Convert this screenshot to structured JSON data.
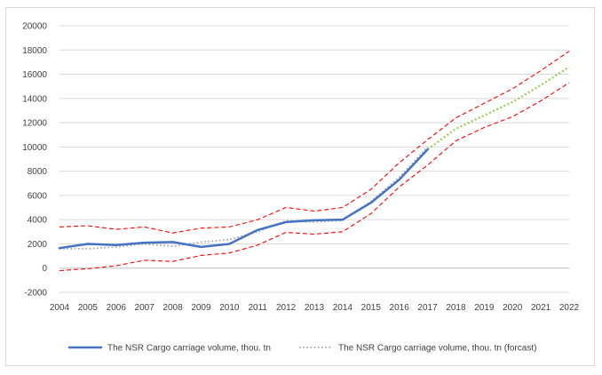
{
  "chart_data": {
    "type": "line",
    "x": [
      2004,
      2005,
      2006,
      2007,
      2008,
      2009,
      2010,
      2011,
      2012,
      2013,
      2014,
      2015,
      2016,
      2017,
      2018,
      2019,
      2020,
      2021,
      2022
    ],
    "x_tick_labels": [
      "2004",
      "2005",
      "2006",
      "2007",
      "2008",
      "2009",
      "2010",
      "2011",
      "2012",
      "2013",
      "2014",
      "2015",
      "2016",
      "2017",
      "2018",
      "2019",
      "2020",
      "2021",
      "2022"
    ],
    "y_tick_labels": [
      "-2000",
      "0",
      "2000",
      "4000",
      "6000",
      "8000",
      "10000",
      "12000",
      "14000",
      "16000",
      "18000",
      "20000"
    ],
    "y_ticks": [
      -2000,
      0,
      2000,
      4000,
      6000,
      8000,
      10000,
      12000,
      14000,
      16000,
      18000,
      20000
    ],
    "ylim": [
      -2000,
      20000
    ],
    "xlim": [
      2004,
      2022
    ],
    "grid": "horizontal",
    "legend_position": "bottom",
    "series": [
      {
        "name": "The NSR Cargo carriage volume, thou. tn",
        "color": "#4472c4",
        "style": "solid",
        "in_legend": true,
        "x": [
          2004,
          2005,
          2006,
          2007,
          2008,
          2009,
          2010,
          2011,
          2012,
          2013,
          2014,
          2015,
          2016,
          2017
        ],
        "values": [
          1650,
          2000,
          1900,
          2100,
          2150,
          1750,
          2000,
          3150,
          3800,
          3950,
          4000,
          5400,
          7300,
          9800
        ]
      },
      {
        "name": "The NSR Cargo carriage volume, thou. tn (forcast)",
        "color": "#a5a5a5",
        "style": "dotted",
        "in_legend": true,
        "x": [
          2004,
          2005,
          2006,
          2007,
          2008,
          2009,
          2010,
          2011,
          2012,
          2013,
          2014,
          2015,
          2016,
          2017
        ],
        "values": [
          1600,
          1600,
          1750,
          2000,
          1800,
          2150,
          2350,
          3000,
          3900,
          3800,
          3950,
          5500,
          7500,
          10000
        ]
      },
      {
        "name": "",
        "color": "#92d050",
        "style": "dotted",
        "in_legend": false,
        "x": [
          2017,
          2018,
          2019,
          2020,
          2021,
          2022
        ],
        "values": [
          9800,
          11500,
          12600,
          13700,
          15100,
          16600
        ]
      },
      {
        "name": "",
        "color": "#ff0000",
        "style": "dashed",
        "in_legend": false,
        "x": [
          2004,
          2005,
          2006,
          2007,
          2008,
          2009,
          2010,
          2011,
          2012,
          2013,
          2014,
          2015,
          2016,
          2017,
          2018,
          2019,
          2020,
          2021,
          2022
        ],
        "values": [
          3400,
          3500,
          3200,
          3400,
          2900,
          3300,
          3400,
          4000,
          5000,
          4700,
          5000,
          6500,
          8700,
          10600,
          12400,
          13600,
          14800,
          16300,
          17900
        ]
      },
      {
        "name": "",
        "color": "#ff0000",
        "style": "dashed",
        "in_legend": false,
        "x": [
          2004,
          2005,
          2006,
          2007,
          2008,
          2009,
          2010,
          2011,
          2012,
          2013,
          2014,
          2015,
          2016,
          2017,
          2018,
          2019,
          2020,
          2021,
          2022
        ],
        "values": [
          -200,
          -50,
          200,
          650,
          550,
          1050,
          1250,
          1900,
          2950,
          2800,
          3000,
          4500,
          6700,
          8500,
          10500,
          11600,
          12500,
          13800,
          15300
        ]
      }
    ]
  }
}
